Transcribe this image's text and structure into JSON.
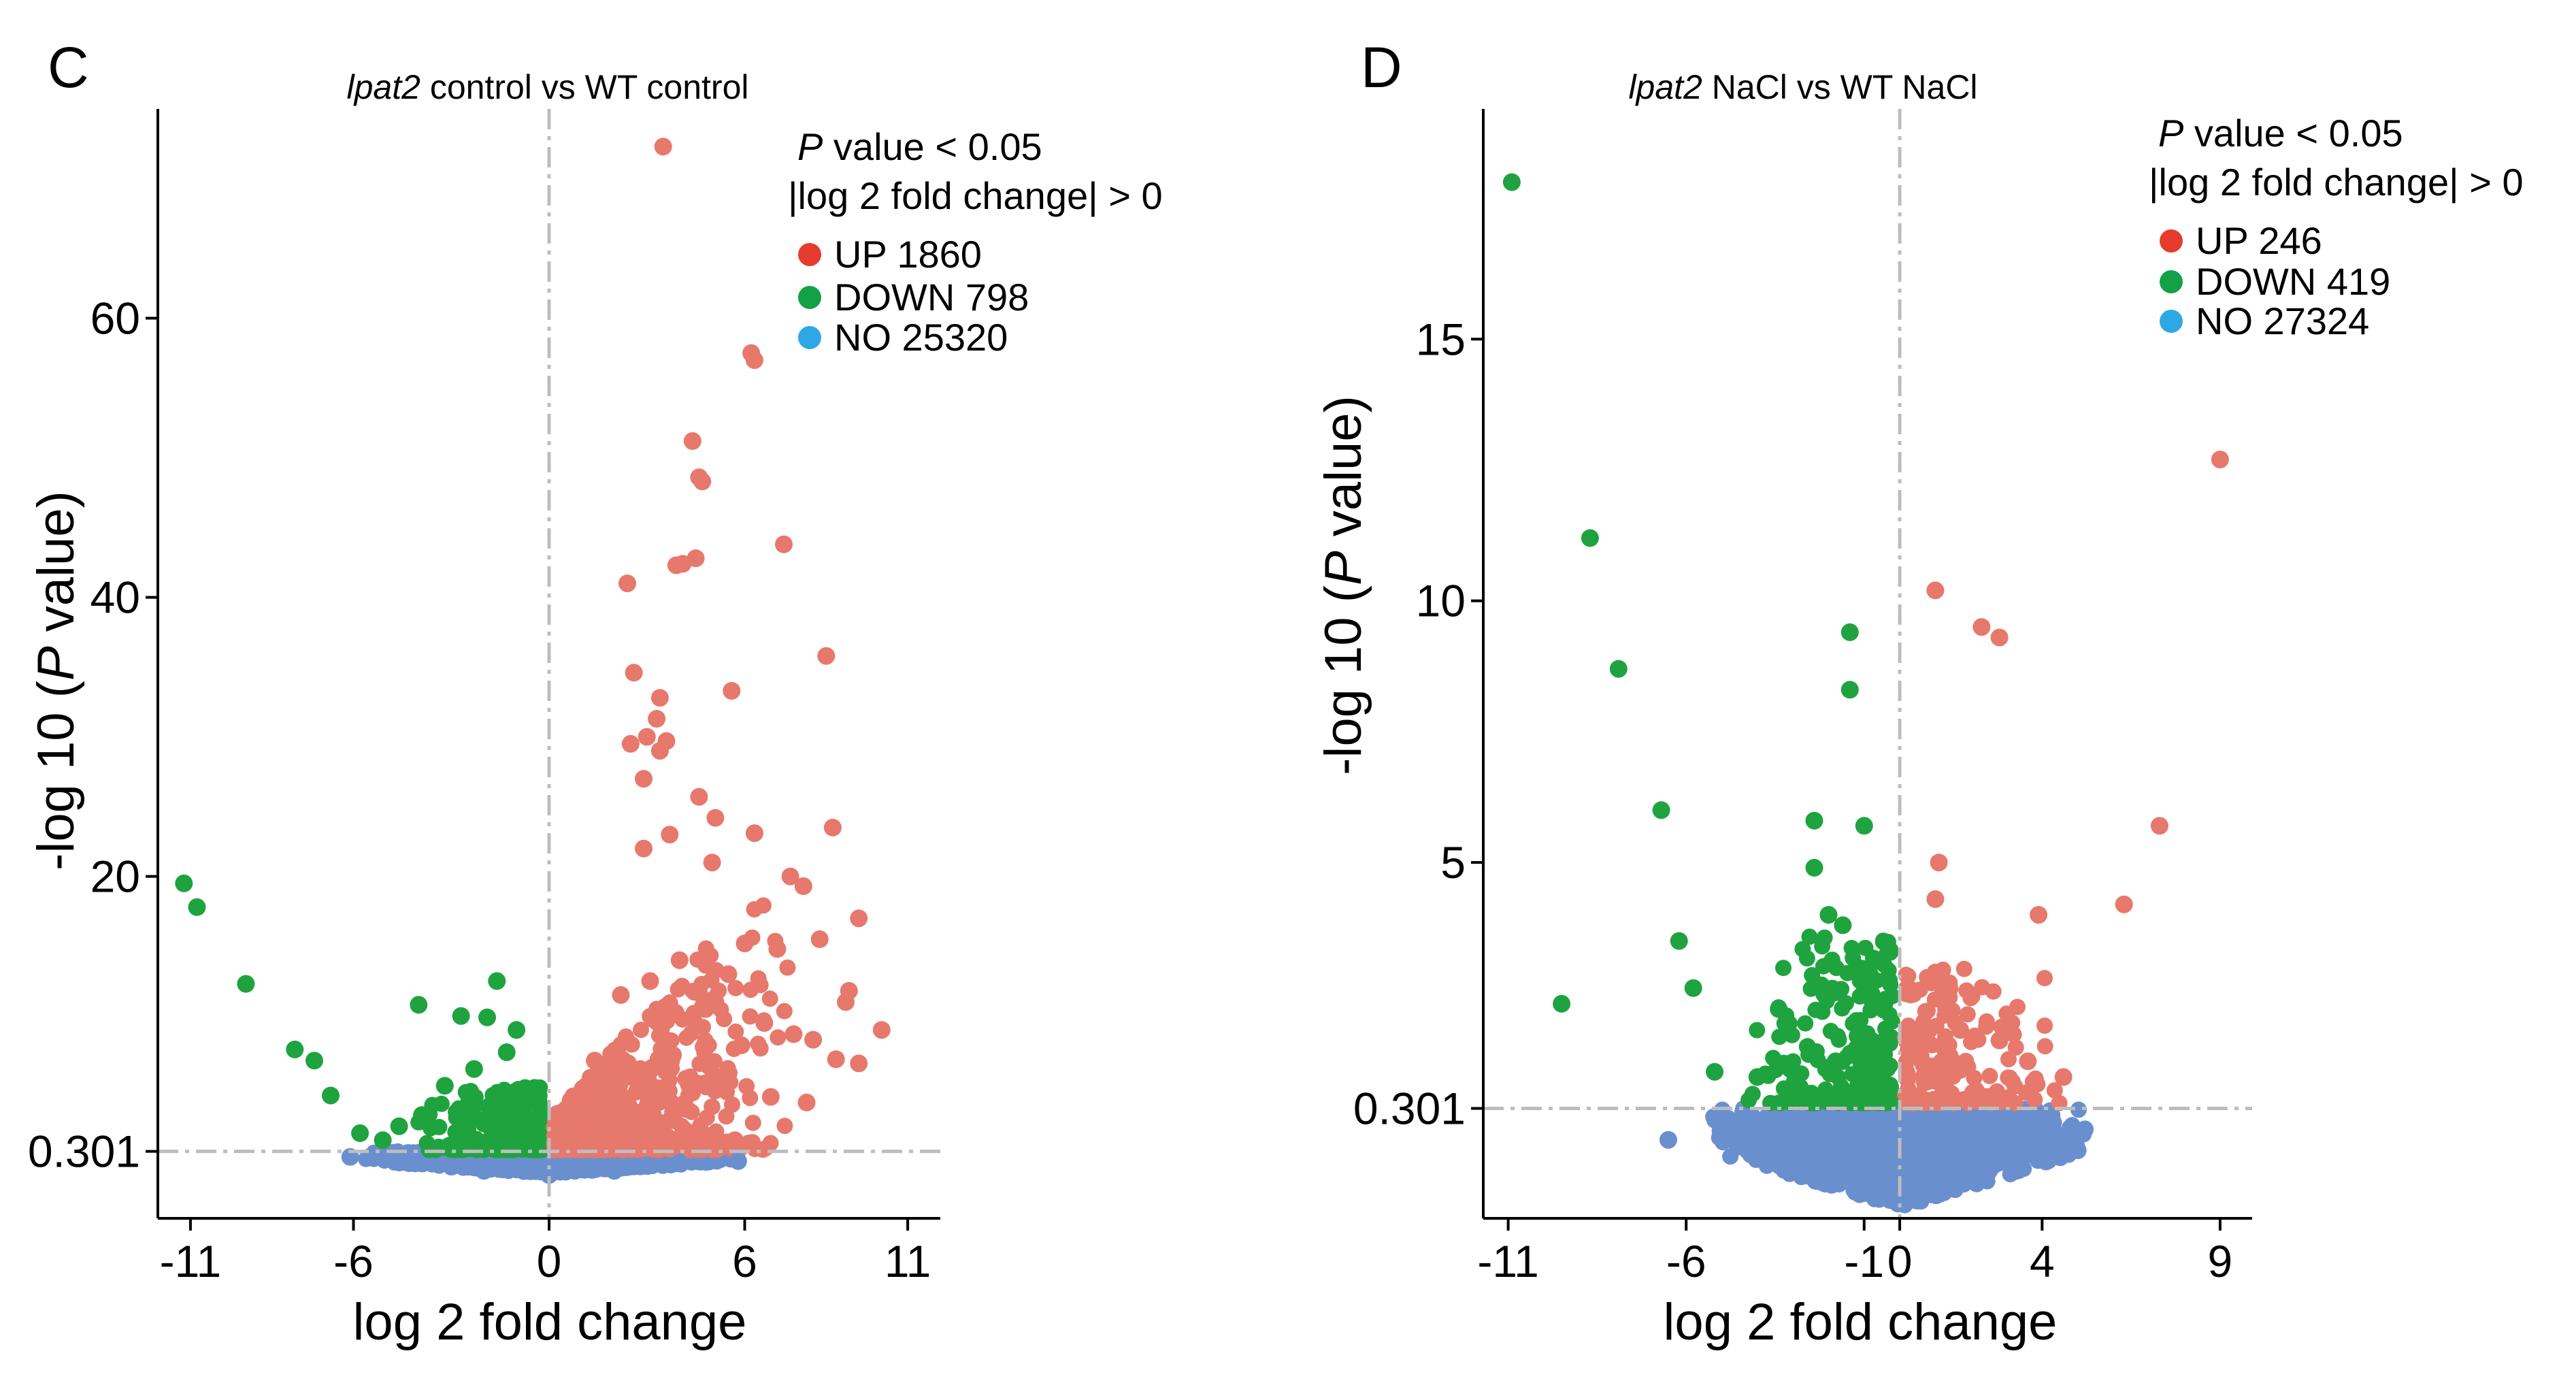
{
  "colors": {
    "up": "#e7786c",
    "down": "#1fa33e",
    "no": "#6a8fcf",
    "legend_up": "#e63b2e",
    "legend_down": "#13a147",
    "legend_no": "#2ea8e4",
    "ref_line": "#bdbdbd"
  },
  "chart_data": [
    {
      "type": "scatter",
      "panel_label": "C",
      "title_italic": "lpat2",
      "title_rest": " control vs WT control",
      "xlabel": "log 2 fold change",
      "ylabel_pre": "-log 10 (",
      "ylabel_italic": "P",
      "ylabel_post": " value)",
      "xlim": [
        -12,
        12
      ],
      "ylim": [
        -4.5,
        75
      ],
      "xticks": [
        -11,
        -6,
        0,
        6,
        11
      ],
      "xtick_labels": [
        "-11",
        "-6",
        "0",
        "6",
        "11"
      ],
      "yticks": [
        0.301,
        20,
        40,
        60
      ],
      "ytick_labels": [
        "0.301",
        "20",
        "40",
        "60"
      ],
      "hline": 0.301,
      "vline": 0,
      "legend": {
        "criteria_italic": "P",
        "criteria_1_rest": " value < 0.05",
        "criteria_2": "|log 2 fold change| > 0",
        "up": "UP 1860",
        "down": "DOWN 798",
        "no": "NO 25320"
      },
      "counts": {
        "up": 1860,
        "down": 798,
        "no": 25320
      },
      "series": [
        {
          "name": "UP",
          "points": [
            [
              3.5,
              72.3
            ],
            [
              6.2,
              57.5
            ],
            [
              6.3,
              57.0
            ],
            [
              4.4,
              51.2
            ],
            [
              4.6,
              48.6
            ],
            [
              4.7,
              48.3
            ],
            [
              7.2,
              43.8
            ],
            [
              3.9,
              42.3
            ],
            [
              4.1,
              42.4
            ],
            [
              4.5,
              42.8
            ],
            [
              2.4,
              41.0
            ],
            [
              8.5,
              35.8
            ],
            [
              2.6,
              34.6
            ],
            [
              5.6,
              33.3
            ],
            [
              3.4,
              32.8
            ],
            [
              3.3,
              31.3
            ],
            [
              3.0,
              30.0
            ],
            [
              3.6,
              29.7
            ],
            [
              2.5,
              29.5
            ],
            [
              3.4,
              29.0
            ],
            [
              2.9,
              27.0
            ],
            [
              4.6,
              25.7
            ],
            [
              5.1,
              24.2
            ],
            [
              6.3,
              23.1
            ],
            [
              8.7,
              23.5
            ],
            [
              3.7,
              23.0
            ],
            [
              2.9,
              22.0
            ],
            [
              5.0,
              21.0
            ],
            [
              7.4,
              20.0
            ],
            [
              7.8,
              19.3
            ],
            [
              9.5,
              17.0
            ],
            [
              8.3,
              15.5
            ],
            [
              6.0,
              15.2
            ],
            [
              7.0,
              14.8
            ],
            [
              9.2,
              11.8
            ],
            [
              9.1,
              11.0
            ],
            [
              10.2,
              9.0
            ],
            [
              8.8,
              6.9
            ],
            [
              9.5,
              6.6
            ],
            [
              4.0,
              14.0
            ],
            [
              5.5,
              13.0
            ],
            [
              3.1,
              12.5
            ],
            [
              2.2,
              11.5
            ],
            [
              4.8,
              10.5
            ],
            [
              6.6,
              9.5
            ],
            [
              7.5,
              8.7
            ],
            [
              8.1,
              8.3
            ],
            [
              5.9,
              7.9
            ],
            [
              3.8,
              7.2
            ],
            [
              1.4,
              6.8
            ],
            [
              2.8,
              6.2
            ],
            [
              4.2,
              5.5
            ],
            [
              5.2,
              4.8
            ],
            [
              6.8,
              4.2
            ],
            [
              7.9,
              3.8
            ],
            [
              1.1,
              3.5
            ],
            [
              2.1,
              2.8
            ],
            [
              3.3,
              2.2
            ],
            [
              4.6,
              1.6
            ],
            [
              5.7,
              1.1
            ],
            [
              1.6,
              1.2
            ],
            [
              0.8,
              0.9
            ],
            [
              2.5,
              1.0
            ]
          ]
        },
        {
          "name": "DOWN",
          "points": [
            [
              -11.2,
              19.5
            ],
            [
              -10.8,
              17.8
            ],
            [
              -9.3,
              12.3
            ],
            [
              -7.8,
              7.6
            ],
            [
              -7.2,
              6.8
            ],
            [
              -6.7,
              4.3
            ],
            [
              -4.0,
              10.8
            ],
            [
              -1.6,
              12.5
            ],
            [
              -1.9,
              9.9
            ],
            [
              -2.7,
              10.0
            ],
            [
              -1.0,
              9.0
            ],
            [
              -1.3,
              7.4
            ],
            [
              -2.3,
              6.2
            ],
            [
              -3.2,
              5.0
            ],
            [
              -4.6,
              2.1
            ],
            [
              -5.8,
              1.6
            ],
            [
              -1.8,
              3.0
            ],
            [
              -0.9,
              2.1
            ],
            [
              -3.9,
              2.9
            ],
            [
              -2.5,
              1.8
            ],
            [
              -5.1,
              1.1
            ],
            [
              -1.2,
              1.5
            ],
            [
              -2.0,
              0.9
            ]
          ]
        },
        {
          "name": "NO",
          "points": [
            [
              -6.1,
              -0.1
            ],
            [
              5.8,
              -0.4
            ],
            [
              -3.0,
              -0.8
            ],
            [
              -1.0,
              -1.0
            ],
            [
              1.0,
              -1.0
            ],
            [
              3.0,
              -0.7
            ],
            [
              0.0,
              -1.4
            ],
            [
              2.0,
              -1.1
            ],
            [
              -2.0,
              -1.1
            ],
            [
              4.0,
              -0.5
            ]
          ]
        }
      ]
    },
    {
      "type": "scatter",
      "panel_label": "D",
      "title_italic": "lpat2",
      "title_rest": " NaCl vs WT NaCl",
      "xlabel": "log 2 fold change",
      "ylabel_pre": "-log 10 (",
      "ylabel_italic": "P",
      "ylabel_post": " value)",
      "xlim": [
        -11.7,
        9.9
      ],
      "ylim": [
        -1.8,
        19.4
      ],
      "xticks": [
        -11,
        -6,
        -1,
        0,
        4,
        9
      ],
      "xtick_labels": [
        "-11",
        "-6",
        "-1",
        "0",
        "4",
        "9"
      ],
      "yticks": [
        0.301,
        5,
        10,
        15
      ],
      "ytick_labels": [
        "0.301",
        "5",
        "10",
        "15"
      ],
      "hline": 0.301,
      "vline": 0,
      "legend": {
        "criteria_italic": "P",
        "criteria_1_rest": " value < 0.05",
        "criteria_2": "|log 2 fold change| > 0",
        "up": "UP 246",
        "down": "DOWN 419",
        "no": "NO 27324"
      },
      "counts": {
        "up": 246,
        "down": 419,
        "no": 27324
      },
      "series": [
        {
          "name": "UP",
          "points": [
            [
              9.0,
              12.7
            ],
            [
              1.0,
              10.2
            ],
            [
              2.3,
              9.5
            ],
            [
              2.8,
              9.3
            ],
            [
              7.3,
              5.7
            ],
            [
              6.3,
              4.2
            ],
            [
              1.1,
              5.0
            ],
            [
              3.9,
              4.0
            ],
            [
              1.0,
              4.3
            ],
            [
              1.3,
              2.2
            ],
            [
              1.7,
              1.8
            ],
            [
              2.8,
              1.6
            ],
            [
              3.6,
              1.2
            ],
            [
              4.6,
              0.9
            ],
            [
              0.7,
              0.8
            ],
            [
              1.4,
              0.6
            ],
            [
              2.1,
              0.5
            ]
          ]
        },
        {
          "name": "DOWN",
          "points": [
            [
              -10.9,
              18.0
            ],
            [
              -8.7,
              11.2
            ],
            [
              -7.9,
              8.7
            ],
            [
              -6.7,
              6.0
            ],
            [
              -9.5,
              2.3
            ],
            [
              -6.2,
              3.5
            ],
            [
              -5.8,
              2.6
            ],
            [
              -1.4,
              9.4
            ],
            [
              -1.4,
              8.3
            ],
            [
              -2.4,
              5.8
            ],
            [
              -1.0,
              5.7
            ],
            [
              -2.4,
              4.9
            ],
            [
              -2.0,
              4.0
            ],
            [
              -1.6,
              3.8
            ],
            [
              -3.4,
              2.2
            ],
            [
              -1.2,
              3.0
            ],
            [
              -5.2,
              1.0
            ],
            [
              -4.0,
              0.9
            ],
            [
              -2.8,
              0.7
            ],
            [
              -1.8,
              1.2
            ],
            [
              -0.8,
              1.6
            ]
          ]
        },
        {
          "name": "NO",
          "points": [
            [
              -6.5,
              -0.3
            ],
            [
              5.2,
              -0.1
            ],
            [
              5.0,
              -0.5
            ],
            [
              -4.5,
              -0.4
            ],
            [
              -2.5,
              -0.9
            ],
            [
              -0.5,
              -1.2
            ],
            [
              0.0,
              -1.5
            ],
            [
              2.5,
              -0.9
            ],
            [
              4.0,
              -0.5
            ],
            [
              1.0,
              -1.1
            ]
          ]
        }
      ]
    }
  ]
}
